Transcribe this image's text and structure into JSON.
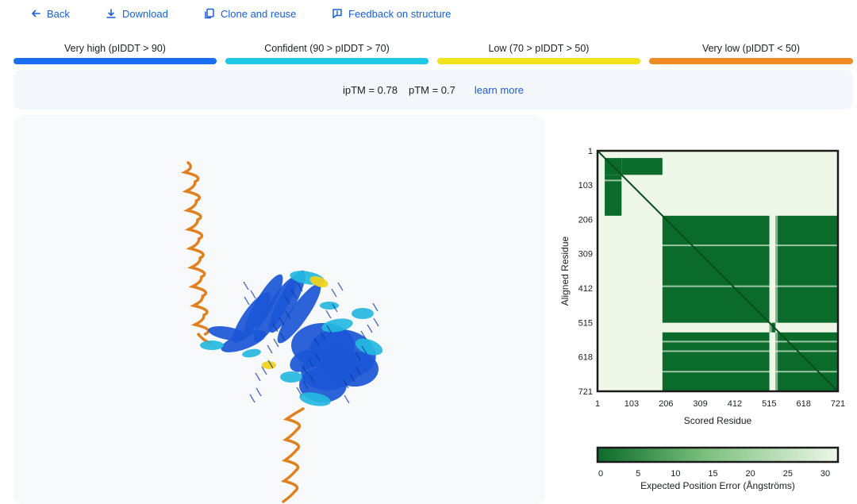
{
  "toolbar": {
    "back": "Back",
    "download": "Download",
    "clone": "Clone and reuse",
    "feedback": "Feedback on structure"
  },
  "legend": [
    {
      "label": "Very high (pIDDT > 90)",
      "color": "#1a6ff0"
    },
    {
      "label": "Confident (90 > pIDDT > 70)",
      "color": "#1ec8e6"
    },
    {
      "label": "Low (70 > pIDDT > 50)",
      "color": "#f2e21a"
    },
    {
      "label": "Very low (pIDDT < 50)",
      "color": "#ef8a24"
    }
  ],
  "metrics": {
    "iptm": "ipTM = 0.78",
    "ptm": "pTM = 0.7",
    "learn_more": "learn more"
  },
  "pae": {
    "ylabel": "Aligned Residue",
    "xlabel": "Scored Residue",
    "ticks": [
      "1",
      "103",
      "206",
      "309",
      "412",
      "515",
      "618",
      "721"
    ],
    "colorbar_label": "Expected Position Error (Ångströms)",
    "colorbar_ticks": [
      "0",
      "5",
      "10",
      "15",
      "20",
      "25",
      "30"
    ],
    "colors": {
      "low": "#0b6b2a",
      "high": "#eef7e8"
    }
  },
  "structure_colors": {
    "very_high": "#1a56d6",
    "confident": "#24b8e0",
    "low": "#f2d21a",
    "very_low": "#e0801f"
  }
}
